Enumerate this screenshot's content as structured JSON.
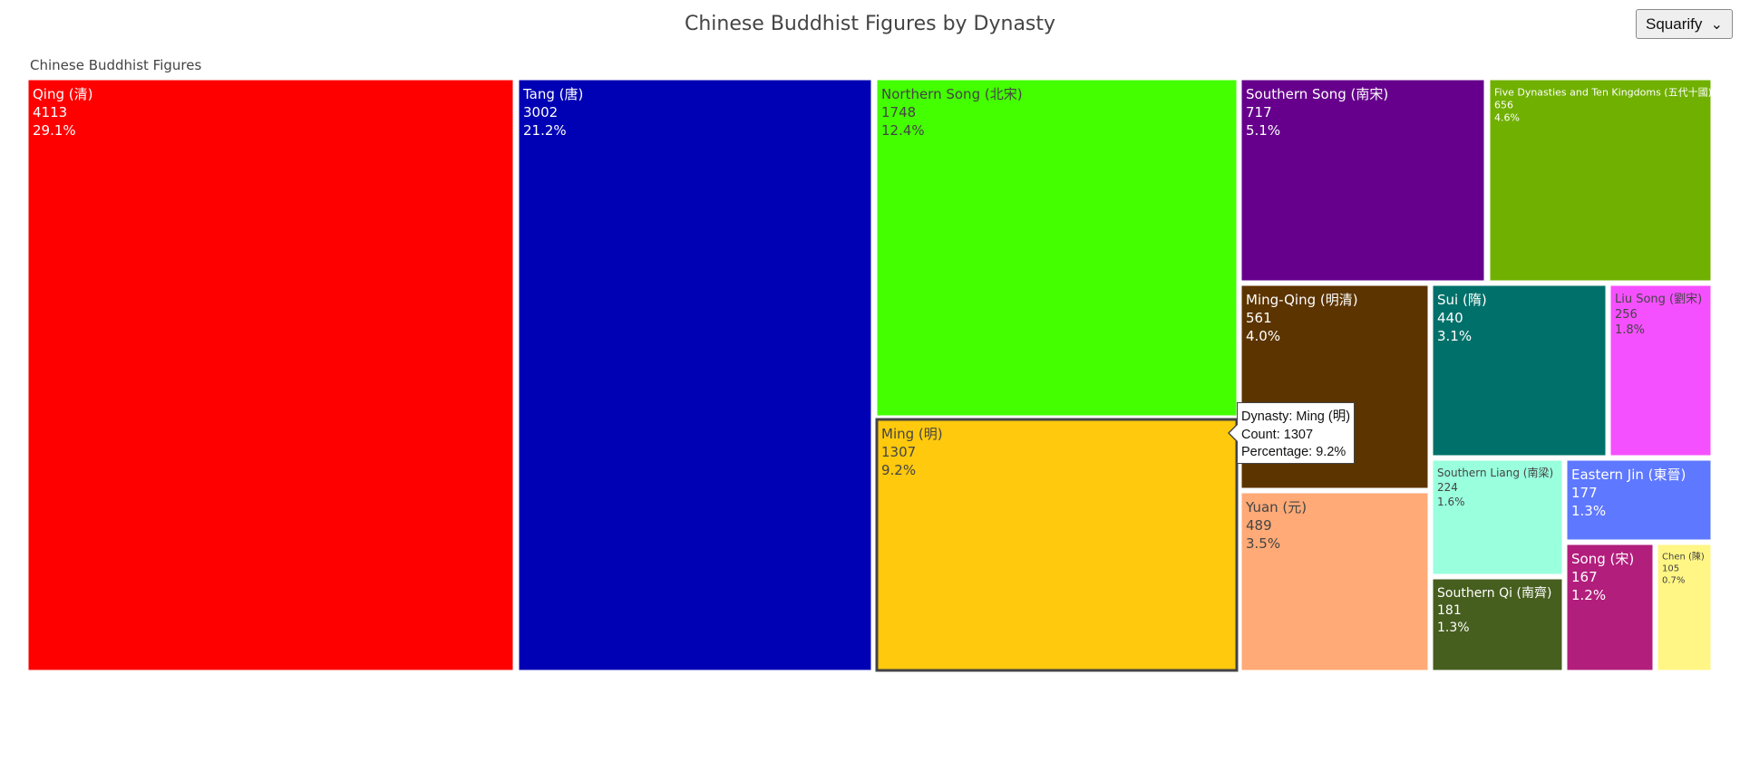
{
  "chart_data": {
    "type": "treemap",
    "title": "Chinese Buddhist Figures by Dynasty",
    "root_label": "Chinese Buddhist Figures",
    "layout_mode": "Squarify",
    "tiles": [
      {
        "name": "Qing (清)",
        "value": 4113,
        "percent": "29.1%",
        "color": "#ff0000"
      },
      {
        "name": "Tang (唐)",
        "value": 3002,
        "percent": "21.2%",
        "color": "#0000b4"
      },
      {
        "name": "Northern Song (北宋)",
        "value": 1748,
        "percent": "12.4%",
        "color": "#44ff00"
      },
      {
        "name": "Ming (明)",
        "value": 1307,
        "percent": "9.2%",
        "color": "#ffc90e"
      },
      {
        "name": "Southern Song (南宋)",
        "value": 717,
        "percent": "5.1%",
        "color": "#66008c"
      },
      {
        "name": "Five Dynasties and Ten Kingdoms (五代十國)",
        "value": 656,
        "percent": "4.6%",
        "color": "#70b000"
      },
      {
        "name": "Ming-Qing (明清)",
        "value": 561,
        "percent": "4.0%",
        "color": "#5c3400"
      },
      {
        "name": "Yuan (元)",
        "value": 489,
        "percent": "3.5%",
        "color": "#ffaa77"
      },
      {
        "name": "Sui (隋)",
        "value": 440,
        "percent": "3.1%",
        "color": "#00716a"
      },
      {
        "name": "Liu Song (劉宋)",
        "value": 256,
        "percent": "1.8%",
        "color": "#f550ff"
      },
      {
        "name": "Southern Liang (南梁)",
        "value": 224,
        "percent": "1.6%",
        "color": "#99ffdd"
      },
      {
        "name": "Southern Qi (南齊)",
        "value": 181,
        "percent": "1.3%",
        "color": "#465e1e"
      },
      {
        "name": "Eastern Jin (東晉)",
        "value": 177,
        "percent": "1.3%",
        "color": "#5e78ff"
      },
      {
        "name": "Song (宋)",
        "value": 167,
        "percent": "1.2%",
        "color": "#b21e7c"
      },
      {
        "name": "Chen (陳)",
        "value": 105,
        "percent": "0.7%",
        "color": "#fff685"
      }
    ],
    "hovered": "Ming (明)"
  },
  "controls": {
    "layout_select": {
      "selected": "Squarify"
    }
  },
  "tooltip": {
    "line1": "Dynasty: Ming (明)",
    "line2": "Count: 1307",
    "line3": "Percentage: 9.2%"
  }
}
